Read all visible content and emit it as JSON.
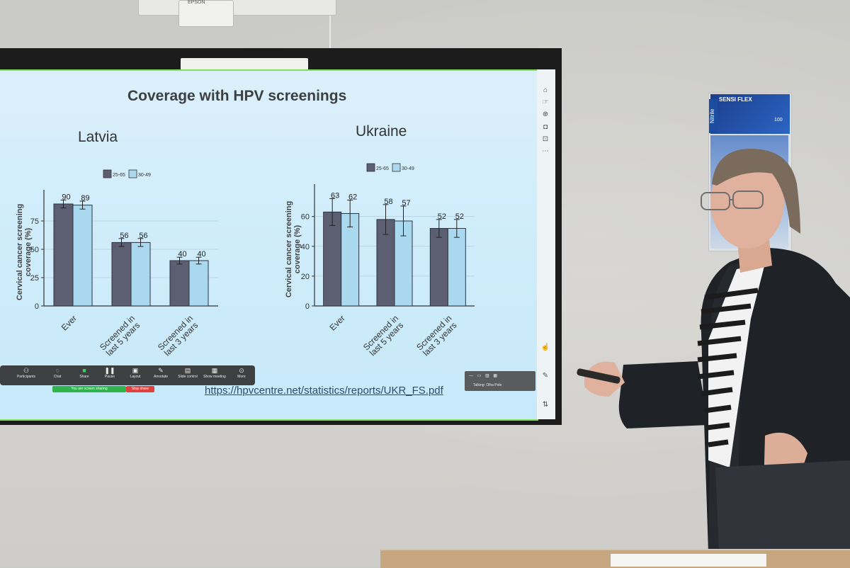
{
  "slide": {
    "title": "Coverage with HPV screenings",
    "url": "https://hpvcentre.net/statistics/reports/UKR_FS.pdf"
  },
  "meeting_toolbar": {
    "items": [
      "Participants",
      "Chat",
      "Share",
      "Pause",
      "Layout",
      "Annotate",
      "Slide control",
      "Show meeting",
      "More"
    ],
    "share_status": "You are screen sharing",
    "stop_label": "Stop share",
    "talking": "Talking: Olha Pole"
  },
  "wall": {
    "glove_brand": "SENSI FLEX",
    "glove_side": "Nitrile",
    "glove_count": "100",
    "projector_brand": "EPSON"
  },
  "colors": {
    "series_dark": "#5c5e72",
    "series_light": "#a9d8ef",
    "screen_border": "#7ee05a"
  },
  "chart_data": [
    {
      "type": "bar",
      "title": "Latvia",
      "categories": [
        "Ever",
        "Screened in last 5 years",
        "Screened in last 3 years"
      ],
      "series": [
        {
          "name": "25-65",
          "values": [
            90,
            56,
            40
          ],
          "color": "#5c5e72"
        },
        {
          "name": "30-49",
          "values": [
            89,
            56,
            40
          ],
          "color": "#a9d8ef"
        }
      ],
      "ylabel": "Cervical cancer screening coverage (%)",
      "yticks": [
        0,
        25,
        50,
        75
      ],
      "ylim": [
        0,
        95
      ],
      "error_bars": true,
      "grid": true,
      "legend": "top-center"
    },
    {
      "type": "bar",
      "title": "Ukraine",
      "categories": [
        "Ever",
        "Screened in last 5 years",
        "Screened in last 3 years"
      ],
      "series": [
        {
          "name": "25-65",
          "values": [
            63,
            58,
            52
          ],
          "color": "#5c5e72"
        },
        {
          "name": "30-49",
          "values": [
            62,
            57,
            52
          ],
          "color": "#a9d8ef"
        }
      ],
      "ylabel": "Cervical cancer screening coverage (%)",
      "yticks": [
        0,
        20,
        40,
        60
      ],
      "ylim": [
        0,
        76
      ],
      "error_bars": true,
      "grid": true,
      "legend": "top-center"
    }
  ]
}
